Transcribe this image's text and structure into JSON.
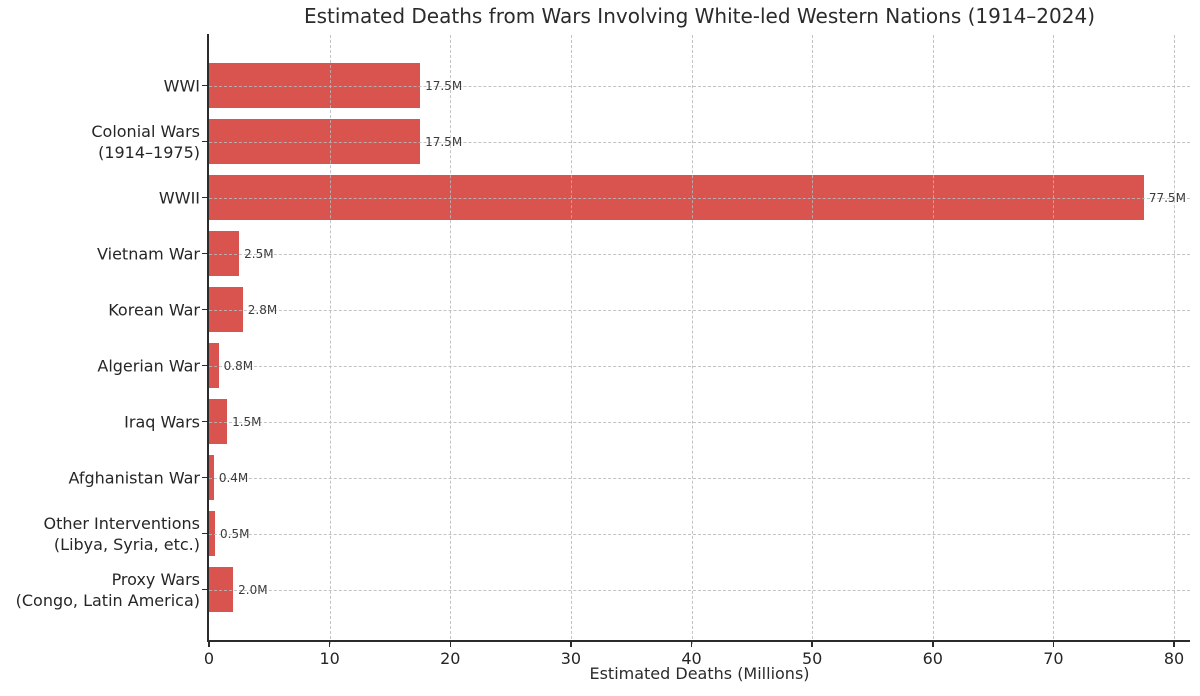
{
  "chart_data": {
    "type": "bar",
    "orientation": "horizontal",
    "title": "Estimated Deaths from Wars Involving White-led Western Nations (1914–2024)",
    "xlabel": "Estimated Deaths (Millions)",
    "xlim": [
      0,
      80
    ],
    "xticks": [
      0,
      10,
      20,
      30,
      40,
      50,
      60,
      70,
      80
    ],
    "grid": "dashed gridlines on both axes, drawn above bars",
    "legend": "none",
    "bar_color": "#d9534f",
    "categories": [
      "WWI",
      "Colonial Wars\n(1914–1975)",
      "WWII",
      "Vietnam War",
      "Korean War",
      "Algerian War",
      "Iraq Wars",
      "Afghanistan War",
      "Other Interventions\n(Libya, Syria, etc.)",
      "Proxy Wars\n(Congo, Latin America)"
    ],
    "values": [
      17.5,
      17.5,
      77.5,
      2.5,
      2.8,
      0.8,
      1.5,
      0.4,
      0.5,
      2.0
    ],
    "value_labels": [
      "17.5M",
      "17.5M",
      "77.5M",
      "2.5M",
      "2.8M",
      "0.8M",
      "1.5M",
      "0.4M",
      "0.5M",
      "2.0M"
    ]
  },
  "colors": {
    "bar": "#d9534f",
    "axis": "#2b2b2b",
    "grid": "#b9b9b9",
    "background": "#ffffff"
  }
}
